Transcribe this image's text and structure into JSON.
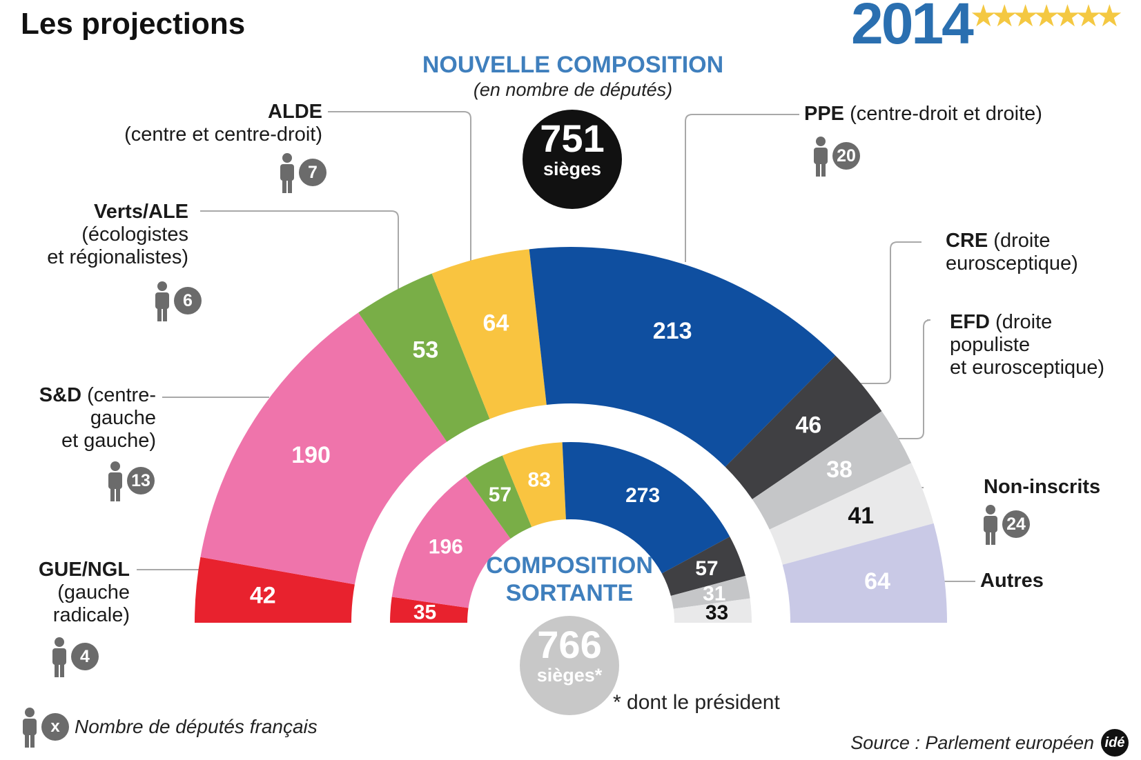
{
  "header": {
    "title": "Les projections",
    "year": "2014",
    "stars": "★★★★★★★"
  },
  "new": {
    "title": "NOUVELLE  COMPOSITION",
    "subtitle": "(en nombre de députés)",
    "seats_number": "751",
    "seats_label": "sièges"
  },
  "old": {
    "title": "COMPOSITION SORTANTE",
    "seats_number": "766",
    "seats_label": "sièges*"
  },
  "footnote": "* dont le président",
  "legend": {
    "badge": "x",
    "text": "Nombre de députés français"
  },
  "source": "Source : Parlement européen",
  "logo": "idé",
  "groups": [
    {
      "short": "GUE/NGL",
      "desc_lines": [
        "(gauche",
        "radicale)"
      ],
      "french": "4",
      "color": "#e8222e"
    },
    {
      "short": "S&D",
      "desc_lines": [
        " (centre-",
        "gauche",
        "et gauche)"
      ],
      "french": "13",
      "color": "#ef74ab"
    },
    {
      "short": "Verts/ALE",
      "desc_lines": [
        "(écologistes",
        "et régionalistes)"
      ],
      "french": "6",
      "color": "#79ae47"
    },
    {
      "short": "ALDE",
      "desc_lines": [
        "(centre et centre-droit)"
      ],
      "french": "7",
      "color": "#f9c440"
    },
    {
      "short": "PPE",
      "desc_lines": [
        " (centre-droit et droite)"
      ],
      "french": "20",
      "color": "#0f4fa0"
    },
    {
      "short": "CRE",
      "desc_lines": [
        " (droite",
        "eurosceptique)"
      ],
      "french": null,
      "color": "#404043"
    },
    {
      "short": "EFD",
      "desc_lines": [
        " (droite",
        "populiste",
        "et eurosceptique)"
      ],
      "french": null,
      "color": "#c5c6c8"
    },
    {
      "short": "Non-inscrits",
      "desc_lines": [],
      "french": "24",
      "color": "#e9e9ea"
    },
    {
      "short": "Autres",
      "desc_lines": [],
      "french": null,
      "color": "#c9c9e6"
    }
  ],
  "chart_data": [
    {
      "type": "pie",
      "shape": "half-donut (hemicycle)",
      "title": "NOUVELLE  COMPOSITION",
      "subtitle": "(en nombre de députés)",
      "total_label": "751 sièges",
      "categories": [
        "GUE/NGL",
        "S&D",
        "Verts/ALE",
        "ALDE",
        "PPE",
        "CRE",
        "EFD",
        "Non-inscrits",
        "Autres"
      ],
      "values": [
        42,
        190,
        53,
        64,
        213,
        46,
        38,
        41,
        64
      ],
      "colors": [
        "#e8222e",
        "#ef74ab",
        "#79ae47",
        "#f9c440",
        "#0f4fa0",
        "#404043",
        "#c5c6c8",
        "#e9e9ea",
        "#c9c9e6"
      ],
      "label_colors": [
        "#ffffff",
        "#ffffff",
        "#ffffff",
        "#ffffff",
        "#ffffff",
        "#ffffff",
        "#ffffff",
        "#111111",
        "#ffffff"
      ]
    },
    {
      "type": "pie",
      "shape": "half-donut (hemicycle)",
      "title": "COMPOSITION SORTANTE",
      "total_label": "766 sièges*",
      "categories": [
        "GUE/NGL",
        "S&D",
        "Verts/ALE",
        "ALDE",
        "PPE",
        "CRE",
        "EFD",
        "Non-inscrits"
      ],
      "values": [
        35,
        196,
        57,
        83,
        273,
        57,
        31,
        33
      ],
      "colors": [
        "#e8222e",
        "#ef74ab",
        "#79ae47",
        "#f9c440",
        "#0f4fa0",
        "#404043",
        "#c5c6c8",
        "#e9e9ea"
      ],
      "label_colors": [
        "#ffffff",
        "#ffffff",
        "#ffffff",
        "#ffffff",
        "#ffffff",
        "#ffffff",
        "#ffffff",
        "#111111"
      ]
    }
  ]
}
